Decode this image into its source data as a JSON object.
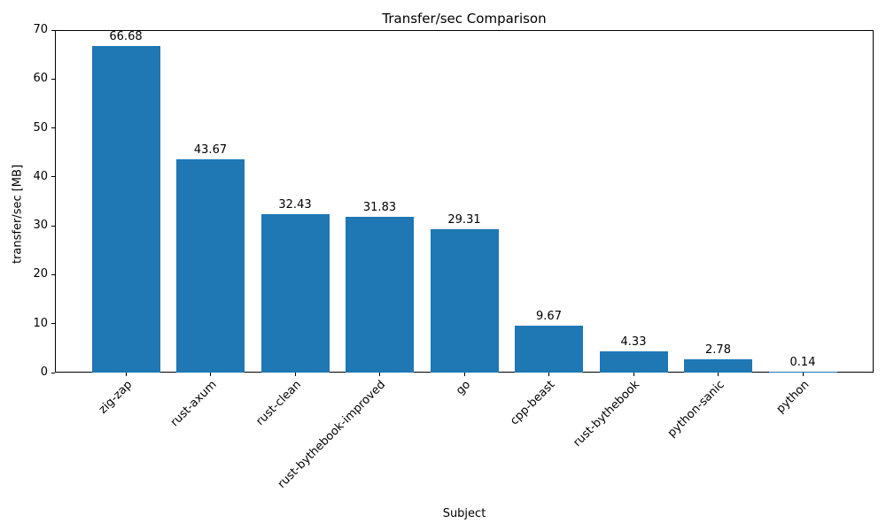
{
  "figure": {
    "background_color": "#ffffff",
    "spine_color": "#000000",
    "text_color": "#000000"
  },
  "chart_data": {
    "type": "bar",
    "title": "Transfer/sec Comparison",
    "xlabel": "Subject",
    "ylabel": "transfer/sec [MB]",
    "categories": [
      "zig-zap",
      "rust-axum",
      "rust-clean",
      "rust-bythebook-improved",
      "go",
      "cpp-beast",
      "rust-bythebook",
      "python-sanic",
      "python"
    ],
    "values": [
      66.68,
      43.67,
      32.43,
      31.83,
      29.31,
      9.67,
      4.33,
      2.78,
      0.14
    ],
    "bar_labels": [
      "66.68",
      "43.67",
      "32.43",
      "31.83",
      "29.31",
      "9.67",
      "4.33",
      "2.78",
      "0.14"
    ],
    "ylim": [
      0,
      70
    ],
    "yticks": [
      0,
      10,
      20,
      30,
      40,
      50,
      60,
      70
    ],
    "bar_color": "#1f77b4",
    "grid": false,
    "legend": null
  }
}
